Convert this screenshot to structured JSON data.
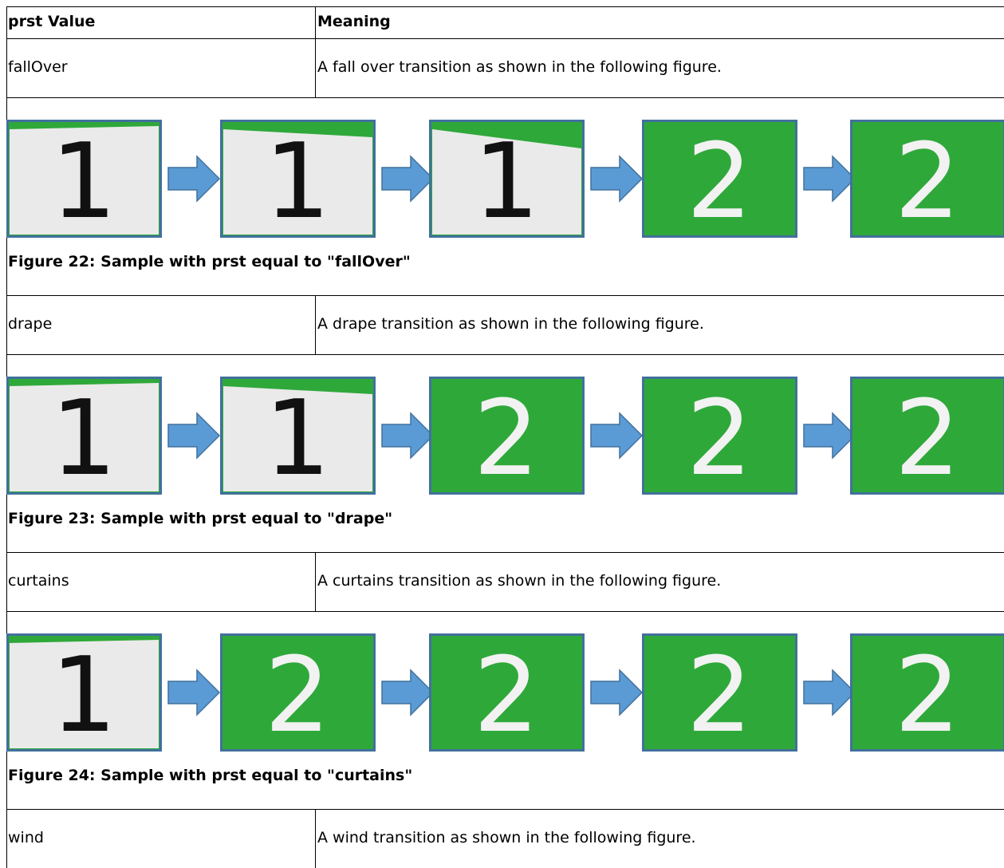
{
  "table": {
    "header": [
      "prst Value",
      "Meaning"
    ],
    "rows": [
      {
        "value": "fallOver",
        "meaning": "A fall over transition as shown in the following figure.",
        "figure": {
          "caption": "Figure 22: Sample with prst equal to \"fallOver\"",
          "frames": [
            "1",
            "1",
            "1",
            "2",
            "2"
          ]
        }
      },
      {
        "value": "drape",
        "meaning": "A drape transition as shown in the following figure.",
        "figure": {
          "caption": "Figure 23: Sample with prst equal to \"drape\"",
          "frames": [
            "1",
            "1",
            "2",
            "2",
            "2"
          ]
        }
      },
      {
        "value": "curtains",
        "meaning": "A curtains transition as shown in the following figure.",
        "figure": {
          "caption": "Figure 24: Sample with prst equal to \"curtains\"",
          "frames": [
            "1",
            "2",
            "2",
            "2",
            "2"
          ]
        }
      },
      {
        "value": "wind",
        "meaning": "A wind transition as shown in the following figure."
      }
    ]
  }
}
